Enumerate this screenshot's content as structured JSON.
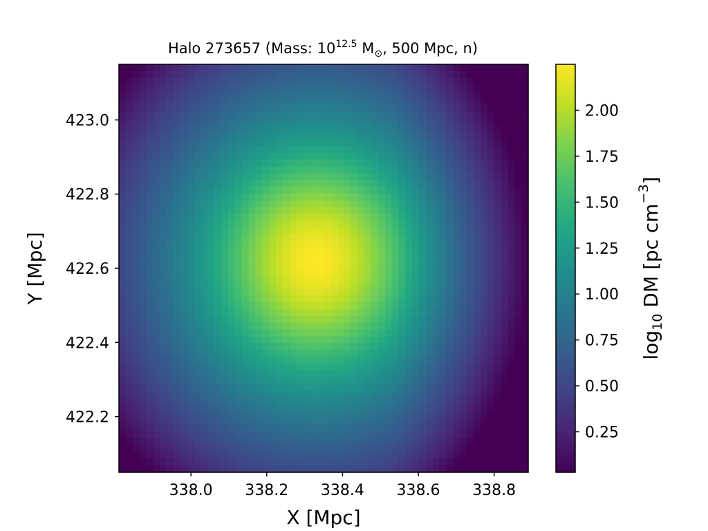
{
  "chart_data": {
    "type": "heatmap",
    "title": {
      "prefix": "Halo 273657 (Mass: 10",
      "exponent": "12.5",
      "mass_unit": " M",
      "mass_unit_subscript": "⊙",
      "suffix": ", 500 Mpc, n)"
    },
    "xlabel": "X [Mpc]",
    "ylabel": "Y [Mpc]",
    "colorbar_label": {
      "prefix": "log",
      "subscript": "10",
      "middle": " DM [pc cm",
      "superscript": "−3",
      "suffix": "]"
    },
    "colormap": "viridis",
    "xlim": [
      337.81,
      338.89
    ],
    "ylim": [
      422.05,
      423.15
    ],
    "xticks": [
      338.0,
      338.2,
      338.4,
      338.6,
      338.8
    ],
    "xtick_labels": [
      "338.0",
      "338.2",
      "338.4",
      "338.6",
      "338.8"
    ],
    "yticks": [
      422.2,
      422.4,
      422.6,
      422.8,
      423.0
    ],
    "ytick_labels": [
      "422.2",
      "422.4",
      "422.6",
      "422.8",
      "423.0"
    ],
    "color_range": [
      0.03,
      2.25
    ],
    "colorbar_ticks": [
      0.25,
      0.5,
      0.75,
      1.0,
      1.25,
      1.5,
      1.75,
      2.0
    ],
    "colorbar_tick_labels": [
      "0.25",
      "0.50",
      "0.75",
      "1.00",
      "1.25",
      "1.50",
      "1.75",
      "2.00"
    ],
    "peak": {
      "x": 338.33,
      "y": 422.62,
      "value": 2.25
    },
    "grid": false
  }
}
